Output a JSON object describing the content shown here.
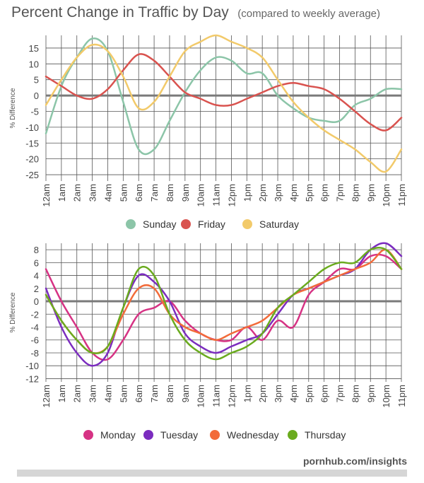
{
  "title": "Percent Change in Traffic by Day",
  "subtitle": "(compared to weekly average)",
  "footer": "pornhub.com/insights",
  "chart_data": [
    {
      "type": "line",
      "ylabel": "% Difference",
      "categories": [
        "12am",
        "1am",
        "2am",
        "3am",
        "4am",
        "5am",
        "6am",
        "7am",
        "8am",
        "9am",
        "10am",
        "11am",
        "12pm",
        "1pm",
        "2pm",
        "3pm",
        "4pm",
        "5pm",
        "6pm",
        "7pm",
        "8pm",
        "9pm",
        "10pm",
        "11pm"
      ],
      "yticks": [
        15,
        10,
        5,
        0,
        -5,
        -10,
        -15,
        -20,
        -25
      ],
      "ylim": [
        -27,
        19
      ],
      "legend_position": "bottom",
      "series": [
        {
          "name": "Sunday",
          "color": "#8cc5a8",
          "values": [
            -12,
            3,
            12,
            18,
            14,
            -2,
            -17,
            -17,
            -8,
            1,
            8,
            12,
            11,
            7,
            7,
            0,
            -4,
            -7,
            -8,
            -8,
            -3,
            -1,
            2,
            2
          ]
        },
        {
          "name": "Friday",
          "color": "#d9534f",
          "values": [
            6,
            3,
            0,
            -1,
            2,
            8,
            13,
            11,
            6,
            1,
            -1,
            -3,
            -3,
            -1,
            1,
            3,
            4,
            3,
            2,
            -1,
            -5,
            -9,
            -11,
            -7
          ]
        },
        {
          "name": "Saturday",
          "color": "#f2ca6a",
          "values": [
            -3,
            5,
            12,
            16,
            14,
            6,
            -4,
            -2,
            6,
            14,
            17,
            19,
            17,
            15,
            12,
            5,
            -2,
            -7,
            -11,
            -14,
            -17,
            -21,
            -24,
            -17
          ]
        }
      ]
    },
    {
      "type": "line",
      "ylabel": "% Difference",
      "categories": [
        "12am",
        "1am",
        "2am",
        "3am",
        "4am",
        "5am",
        "6am",
        "7am",
        "8am",
        "9am",
        "10am",
        "11am",
        "12pm",
        "1pm",
        "2pm",
        "3pm",
        "4pm",
        "5pm",
        "6pm",
        "7pm",
        "8pm",
        "9pm",
        "10pm",
        "11pm"
      ],
      "yticks": [
        8,
        6,
        4,
        2,
        0,
        -2,
        -4,
        -6,
        -8,
        -10,
        -12
      ],
      "ylim": [
        -12.5,
        9
      ],
      "legend_position": "bottom",
      "series": [
        {
          "name": "Monday",
          "color": "#d63384",
          "values": [
            5,
            0,
            -4,
            -8,
            -9,
            -6,
            -2,
            -1,
            0,
            -3,
            -5,
            -6,
            -6,
            -4,
            -6,
            -3,
            -4,
            1,
            3,
            5,
            5,
            7,
            7,
            5
          ]
        },
        {
          "name": "Tuesday",
          "color": "#7b2cbf",
          "values": [
            2,
            -4,
            -8,
            -10,
            -8,
            -1,
            4,
            3,
            0,
            -5,
            -7,
            -8,
            -7,
            -6,
            -5,
            -2,
            1,
            2,
            3,
            4,
            5,
            8,
            9,
            7
          ]
        },
        {
          "name": "Wednesday",
          "color": "#f26b3a",
          "values": [
            1,
            -3,
            -6,
            -8,
            -7,
            -2,
            2,
            2,
            -2,
            -4,
            -5,
            -6,
            -5,
            -4,
            -3,
            -1,
            1,
            2,
            3,
            4,
            5,
            6,
            8,
            5
          ]
        },
        {
          "name": "Thursday",
          "color": "#6aab1e",
          "values": [
            1,
            -3,
            -6,
            -8,
            -7,
            -1,
            5,
            4,
            -2,
            -6,
            -8,
            -9,
            -8,
            -7,
            -5,
            -1,
            1,
            3,
            5,
            6,
            6,
            8,
            8,
            5
          ]
        }
      ]
    }
  ]
}
